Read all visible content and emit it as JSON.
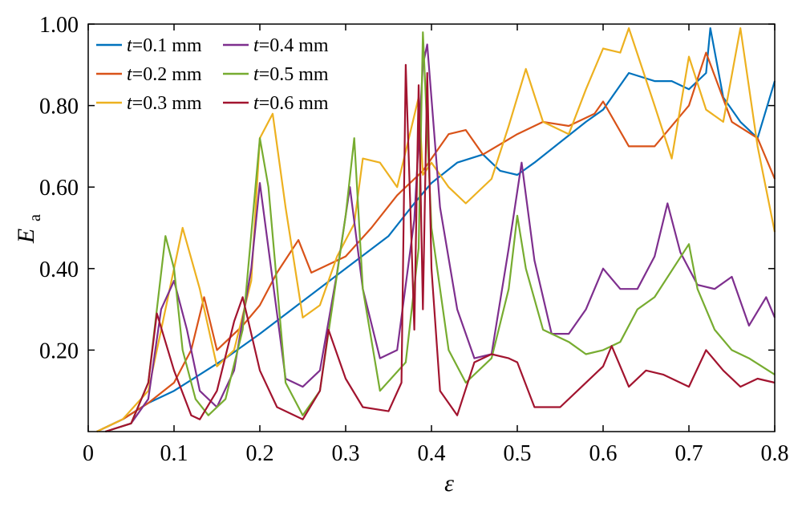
{
  "chart_data": {
    "type": "line",
    "xlabel": "ε",
    "ylabel": "E",
    "ylabel_sub": "a",
    "xlim": [
      0,
      0.8
    ],
    "ylim": [
      0,
      1.0
    ],
    "x_ticks": [
      {
        "value": 0,
        "label": "0"
      },
      {
        "value": 0.1,
        "label": "0.1"
      },
      {
        "value": 0.2,
        "label": "0.2"
      },
      {
        "value": 0.3,
        "label": "0.3"
      },
      {
        "value": 0.4,
        "label": "0.4"
      },
      {
        "value": 0.5,
        "label": "0.5"
      },
      {
        "value": 0.6,
        "label": "0.6"
      },
      {
        "value": 0.7,
        "label": "0.7"
      },
      {
        "value": 0.8,
        "label": "0.8"
      }
    ],
    "y_ticks": [
      {
        "value": 0.2,
        "label": "0.20"
      },
      {
        "value": 0.4,
        "label": "0.40"
      },
      {
        "value": 0.6,
        "label": "0.60"
      },
      {
        "value": 0.8,
        "label": "0.80"
      },
      {
        "value": 1.0,
        "label": "1.00"
      }
    ],
    "grid": false,
    "legend_position": "top-left",
    "series": [
      {
        "name": "t=0.1 mm",
        "name_var": "t",
        "name_rest": "=0.1 mm",
        "color": "#0072BD",
        "x": [
          0.01,
          0.04,
          0.07,
          0.1,
          0.13,
          0.16,
          0.2,
          0.25,
          0.3,
          0.35,
          0.38,
          0.4,
          0.43,
          0.46,
          0.48,
          0.5,
          0.52,
          0.55,
          0.58,
          0.6,
          0.63,
          0.66,
          0.68,
          0.7,
          0.72,
          0.725,
          0.74,
          0.76,
          0.78,
          0.8
        ],
        "y": [
          0.0,
          0.03,
          0.07,
          0.1,
          0.14,
          0.18,
          0.24,
          0.32,
          0.4,
          0.48,
          0.56,
          0.61,
          0.66,
          0.68,
          0.64,
          0.63,
          0.66,
          0.71,
          0.76,
          0.79,
          0.88,
          0.86,
          0.86,
          0.84,
          0.88,
          0.99,
          0.82,
          0.76,
          0.72,
          0.86
        ]
      },
      {
        "name": "t=0.2 mm",
        "name_var": "t",
        "name_rest": "=0.2 mm",
        "color": "#D95319",
        "x": [
          0.01,
          0.04,
          0.07,
          0.1,
          0.12,
          0.135,
          0.15,
          0.18,
          0.2,
          0.22,
          0.245,
          0.26,
          0.3,
          0.33,
          0.36,
          0.39,
          0.42,
          0.44,
          0.46,
          0.5,
          0.53,
          0.56,
          0.59,
          0.6,
          0.63,
          0.66,
          0.7,
          0.72,
          0.75,
          0.78,
          0.8
        ],
        "y": [
          0.0,
          0.03,
          0.07,
          0.12,
          0.2,
          0.33,
          0.2,
          0.26,
          0.31,
          0.39,
          0.47,
          0.39,
          0.43,
          0.5,
          0.58,
          0.64,
          0.73,
          0.74,
          0.68,
          0.73,
          0.76,
          0.75,
          0.78,
          0.81,
          0.7,
          0.7,
          0.8,
          0.93,
          0.76,
          0.72,
          0.62
        ]
      },
      {
        "name": "t=0.3 mm",
        "name_var": "t",
        "name_rest": "=0.3 mm",
        "color": "#EDB120",
        "x": [
          0.01,
          0.04,
          0.07,
          0.09,
          0.11,
          0.13,
          0.15,
          0.17,
          0.19,
          0.2,
          0.215,
          0.23,
          0.25,
          0.27,
          0.29,
          0.31,
          0.32,
          0.34,
          0.36,
          0.385,
          0.39,
          0.4,
          0.42,
          0.44,
          0.47,
          0.49,
          0.51,
          0.53,
          0.56,
          0.58,
          0.6,
          0.62,
          0.63,
          0.66,
          0.68,
          0.7,
          0.72,
          0.74,
          0.76,
          0.78,
          0.8
        ],
        "y": [
          0.0,
          0.03,
          0.1,
          0.3,
          0.5,
          0.35,
          0.16,
          0.2,
          0.37,
          0.72,
          0.78,
          0.55,
          0.28,
          0.31,
          0.43,
          0.51,
          0.67,
          0.66,
          0.6,
          0.82,
          0.63,
          0.66,
          0.6,
          0.56,
          0.62,
          0.75,
          0.89,
          0.76,
          0.73,
          0.84,
          0.94,
          0.93,
          0.99,
          0.8,
          0.67,
          0.92,
          0.79,
          0.76,
          0.99,
          0.7,
          0.49
        ]
      },
      {
        "name": "t=0.4 mm",
        "name_var": "t",
        "name_rest": "=0.4 mm",
        "color": "#7E2F8E",
        "x": [
          0.02,
          0.05,
          0.07,
          0.085,
          0.1,
          0.115,
          0.13,
          0.15,
          0.17,
          0.19,
          0.2,
          0.21,
          0.23,
          0.25,
          0.27,
          0.29,
          0.305,
          0.32,
          0.34,
          0.36,
          0.38,
          0.39,
          0.395,
          0.41,
          0.43,
          0.45,
          0.47,
          0.49,
          0.505,
          0.52,
          0.54,
          0.56,
          0.58,
          0.6,
          0.62,
          0.64,
          0.66,
          0.675,
          0.69,
          0.71,
          0.73,
          0.75,
          0.77,
          0.79,
          0.8
        ],
        "y": [
          0.0,
          0.02,
          0.08,
          0.3,
          0.37,
          0.25,
          0.1,
          0.06,
          0.15,
          0.4,
          0.61,
          0.45,
          0.13,
          0.11,
          0.15,
          0.39,
          0.6,
          0.35,
          0.18,
          0.2,
          0.52,
          0.9,
          0.95,
          0.55,
          0.3,
          0.18,
          0.19,
          0.45,
          0.66,
          0.42,
          0.24,
          0.24,
          0.3,
          0.4,
          0.35,
          0.35,
          0.43,
          0.56,
          0.44,
          0.36,
          0.35,
          0.38,
          0.26,
          0.33,
          0.28
        ]
      },
      {
        "name": "t=0.5 mm",
        "name_var": "t",
        "name_rest": "=0.5 mm",
        "color": "#77AC30",
        "x": [
          0.02,
          0.05,
          0.07,
          0.09,
          0.1,
          0.11,
          0.125,
          0.14,
          0.16,
          0.18,
          0.2,
          0.21,
          0.23,
          0.25,
          0.27,
          0.3,
          0.31,
          0.32,
          0.34,
          0.37,
          0.385,
          0.39,
          0.4,
          0.42,
          0.44,
          0.47,
          0.49,
          0.5,
          0.51,
          0.53,
          0.56,
          0.58,
          0.6,
          0.62,
          0.64,
          0.66,
          0.7,
          0.71,
          0.73,
          0.75,
          0.77,
          0.8
        ],
        "y": [
          0.0,
          0.02,
          0.12,
          0.48,
          0.4,
          0.2,
          0.08,
          0.04,
          0.08,
          0.25,
          0.72,
          0.6,
          0.12,
          0.04,
          0.1,
          0.53,
          0.72,
          0.35,
          0.1,
          0.17,
          0.45,
          0.98,
          0.5,
          0.2,
          0.12,
          0.18,
          0.35,
          0.53,
          0.4,
          0.25,
          0.22,
          0.19,
          0.2,
          0.22,
          0.3,
          0.33,
          0.46,
          0.35,
          0.25,
          0.2,
          0.18,
          0.14
        ]
      },
      {
        "name": "t=0.6 mm",
        "name_var": "t",
        "name_rest": "=0.6 mm",
        "color": "#A2142F",
        "x": [
          0.02,
          0.05,
          0.07,
          0.08,
          0.09,
          0.1,
          0.12,
          0.13,
          0.15,
          0.17,
          0.18,
          0.2,
          0.22,
          0.25,
          0.27,
          0.28,
          0.3,
          0.32,
          0.35,
          0.365,
          0.37,
          0.38,
          0.385,
          0.39,
          0.395,
          0.4,
          0.41,
          0.43,
          0.45,
          0.47,
          0.49,
          0.5,
          0.52,
          0.55,
          0.57,
          0.6,
          0.61,
          0.63,
          0.65,
          0.67,
          0.7,
          0.72,
          0.74,
          0.76,
          0.78,
          0.8
        ],
        "y": [
          0.0,
          0.02,
          0.12,
          0.29,
          0.22,
          0.15,
          0.04,
          0.03,
          0.1,
          0.27,
          0.33,
          0.15,
          0.06,
          0.03,
          0.1,
          0.25,
          0.13,
          0.06,
          0.05,
          0.12,
          0.9,
          0.25,
          0.85,
          0.3,
          0.88,
          0.4,
          0.1,
          0.04,
          0.17,
          0.19,
          0.18,
          0.17,
          0.06,
          0.06,
          0.1,
          0.16,
          0.21,
          0.11,
          0.15,
          0.14,
          0.11,
          0.2,
          0.15,
          0.11,
          0.13,
          0.12
        ]
      }
    ]
  }
}
